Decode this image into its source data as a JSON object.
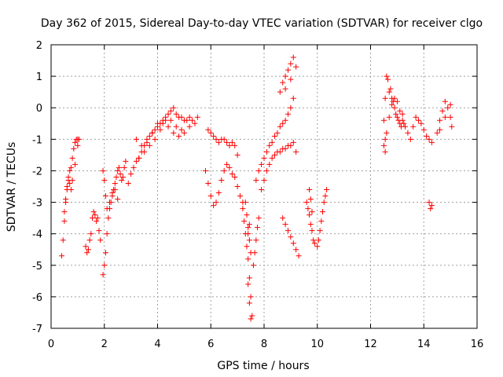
{
  "chart_data": {
    "type": "scatter",
    "title": "Day 362 of 2015, Sidereal Day-to-day VTEC variation (SDTVAR) for receiver clgo",
    "xlabel": "GPS time / hours",
    "ylabel": "SDTVAR / TECUs",
    "xlim": [
      0,
      16
    ],
    "ylim": [
      -7,
      2
    ],
    "xticks": [
      0,
      2,
      4,
      6,
      8,
      10,
      12,
      14,
      16
    ],
    "yticks": [
      -7,
      -6,
      -5,
      -4,
      -3,
      -2,
      -1,
      0,
      1,
      2
    ],
    "grid": true,
    "marker": "+",
    "marker_color": "#ff0000",
    "series": [
      {
        "name": "clgo",
        "x": [
          0.4,
          0.45,
          0.5,
          0.55,
          0.6,
          0.65,
          0.7,
          0.75,
          0.8,
          0.85,
          0.9,
          0.95,
          1.0,
          1.05,
          0.5,
          0.55,
          0.6,
          0.65,
          0.7,
          0.75,
          0.8,
          0.9,
          1.0,
          1.3,
          1.35,
          1.4,
          1.45,
          1.5,
          1.55,
          1.6,
          1.65,
          1.7,
          1.75,
          1.8,
          1.85,
          1.95,
          2.0,
          2.05,
          2.1,
          2.15,
          2.2,
          2.25,
          2.3,
          2.35,
          2.4,
          2.45,
          2.5,
          2.55,
          2.6,
          2.65,
          2.7,
          2.75,
          2.8,
          1.95,
          2.0,
          2.05,
          2.1,
          2.2,
          2.3,
          2.4,
          2.5,
          2.9,
          3.0,
          3.1,
          3.2,
          3.3,
          3.4,
          3.5,
          3.6,
          3.7,
          3.8,
          3.9,
          4.0,
          4.1,
          4.2,
          4.3,
          4.4,
          4.5,
          4.6,
          4.7,
          4.8,
          4.9,
          5.0,
          5.1,
          5.2,
          5.3,
          5.4,
          5.5,
          3.2,
          3.4,
          3.6,
          3.8,
          4.0,
          4.2,
          4.4,
          4.6,
          4.8,
          5.0,
          5.2,
          3.3,
          3.5,
          3.7,
          3.9,
          4.1,
          4.3,
          4.5,
          4.7,
          4.9,
          5.8,
          5.9,
          6.0,
          6.1,
          6.2,
          6.3,
          6.4,
          6.5,
          6.6,
          6.7,
          6.8,
          6.9,
          7.0,
          7.1,
          7.2,
          5.9,
          6.0,
          6.1,
          6.2,
          6.3,
          6.4,
          6.5,
          6.6,
          6.7,
          6.8,
          6.9,
          7.0,
          7.2,
          7.25,
          7.3,
          7.35,
          7.4,
          7.45,
          7.5,
          7.55,
          7.6,
          7.65,
          7.7,
          7.75,
          7.8,
          7.3,
          7.35,
          7.4,
          7.45,
          7.5,
          7.4,
          7.45,
          7.5,
          7.4,
          7.45,
          7.7,
          7.8,
          7.9,
          8.0,
          8.1,
          8.2,
          8.3,
          8.4,
          8.5,
          8.6,
          8.7,
          8.8,
          8.9,
          9.0,
          7.9,
          8.0,
          8.1,
          8.2,
          8.3,
          8.4,
          8.5,
          8.6,
          8.7,
          8.8,
          8.9,
          9.0,
          9.1,
          9.2,
          8.6,
          8.7,
          8.8,
          8.9,
          9.0,
          9.1,
          9.2,
          8.8,
          9.0,
          9.1,
          8.7,
          8.8,
          8.9,
          9.0,
          9.1,
          9.2,
          9.3,
          9.6,
          9.65,
          9.7,
          9.75,
          9.8,
          9.85,
          9.7,
          9.75,
          9.8,
          9.9,
          10.0,
          10.05,
          10.1,
          10.15,
          10.2,
          10.25,
          10.3,
          10.35,
          12.5,
          12.55,
          12.6,
          12.65,
          12.7,
          12.75,
          12.8,
          12.85,
          12.9,
          12.95,
          13.0,
          13.05,
          13.1,
          13.15,
          13.2,
          13.25,
          13.3,
          12.55,
          12.6,
          12.7,
          12.8,
          12.9,
          13.0,
          13.1,
          13.2,
          12.5,
          12.55,
          13.4,
          13.5,
          13.6,
          13.7,
          13.8,
          13.9,
          14.0,
          14.1,
          14.2,
          14.3,
          14.2,
          14.25,
          14.3,
          14.5,
          14.6,
          14.7,
          14.8,
          14.9,
          15.0,
          15.05,
          14.6,
          14.8,
          15.0
        ],
        "y": [
          -4.7,
          -4.2,
          -3.6,
          -3.0,
          -2.6,
          -2.2,
          -2.0,
          -1.9,
          -1.6,
          -1.3,
          -1.1,
          -1.0,
          -1.0,
          -1.0,
          -3.3,
          -2.9,
          -2.5,
          -2.3,
          -2.4,
          -2.6,
          -2.3,
          -1.8,
          -1.2,
          -4.4,
          -4.6,
          -4.5,
          -4.2,
          -4.0,
          -3.5,
          -3.3,
          -3.4,
          -3.6,
          -3.5,
          -3.9,
          -4.2,
          -5.3,
          -5.0,
          -4.6,
          -4.0,
          -3.5,
          -3.2,
          -3.0,
          -2.8,
          -2.6,
          -2.4,
          -2.2,
          -2.0,
          -1.9,
          -2.1,
          -2.3,
          -2.2,
          -1.9,
          -1.7,
          -2.0,
          -2.3,
          -2.8,
          -3.2,
          -3.0,
          -2.7,
          -2.6,
          -2.9,
          -2.4,
          -2.1,
          -1.9,
          -1.7,
          -1.6,
          -1.4,
          -1.2,
          -1.1,
          -0.9,
          -0.8,
          -0.7,
          -0.5,
          -0.5,
          -0.4,
          -0.3,
          -0.2,
          -0.1,
          0.0,
          -0.2,
          -0.3,
          -0.3,
          -0.4,
          -0.4,
          -0.3,
          -0.4,
          -0.5,
          -0.3,
          -1.0,
          -1.2,
          -1.0,
          -0.8,
          -0.6,
          -0.5,
          -0.6,
          -0.8,
          -0.9,
          -0.8,
          -0.6,
          -1.6,
          -1.4,
          -1.2,
          -1.0,
          -0.7,
          -0.4,
          -0.4,
          -0.6,
          -0.7,
          -2.0,
          -2.4,
          -2.8,
          -3.1,
          -3.0,
          -2.7,
          -2.3,
          -2.0,
          -1.8,
          -1.9,
          -2.1,
          -2.2,
          -2.5,
          -2.8,
          -3.0,
          -0.7,
          -0.8,
          -0.9,
          -1.0,
          -1.1,
          -1.0,
          -1.0,
          -1.1,
          -1.2,
          -1.1,
          -1.2,
          -1.5,
          -3.2,
          -3.6,
          -4.0,
          -4.4,
          -4.8,
          -5.4,
          -6.0,
          -6.6,
          -5.0,
          -4.6,
          -4.2,
          -3.8,
          -3.5,
          -3.0,
          -3.4,
          -3.8,
          -4.2,
          -4.6,
          -5.6,
          -6.2,
          -6.7,
          -4.0,
          -3.7,
          -2.3,
          -2.0,
          -1.8,
          -1.6,
          -1.4,
          -1.2,
          -1.1,
          -0.9,
          -0.8,
          -0.6,
          -0.5,
          -0.4,
          -0.2,
          0.0,
          -2.6,
          -2.3,
          -2.0,
          -1.8,
          -1.6,
          -1.5,
          -1.4,
          -1.4,
          -1.3,
          -1.3,
          -1.2,
          -1.2,
          -1.1,
          -1.4,
          0.5,
          0.8,
          1.0,
          1.2,
          1.4,
          1.6,
          1.3,
          0.6,
          0.9,
          0.3,
          -3.5,
          -3.7,
          -3.9,
          -4.1,
          -4.3,
          -4.5,
          -4.7,
          -3.0,
          -3.2,
          -3.4,
          -3.7,
          -3.9,
          -4.2,
          -2.6,
          -2.9,
          -3.3,
          -4.3,
          -4.4,
          -4.2,
          -3.9,
          -3.6,
          -3.3,
          -3.0,
          -2.8,
          -2.6,
          -1.2,
          0.3,
          1.0,
          0.9,
          0.5,
          0.6,
          0.3,
          0.2,
          0.0,
          -0.2,
          -0.3,
          -0.4,
          -0.5,
          -0.6,
          -0.4,
          -0.5,
          -0.6,
          -1.0,
          -0.8,
          -0.3,
          0.1,
          0.3,
          0.2,
          -0.1,
          -0.2,
          -0.4,
          -1.4,
          -0.8,
          -1.0,
          -0.6,
          -0.3,
          -0.4,
          -0.5,
          -0.7,
          -0.9,
          -1.0,
          -1.1,
          -3.0,
          -3.2,
          -3.1,
          -0.8,
          -0.4,
          -0.1,
          0.2,
          0.0,
          -0.3,
          -0.6,
          -0.7,
          -0.3,
          0.1
        ]
      }
    ]
  }
}
